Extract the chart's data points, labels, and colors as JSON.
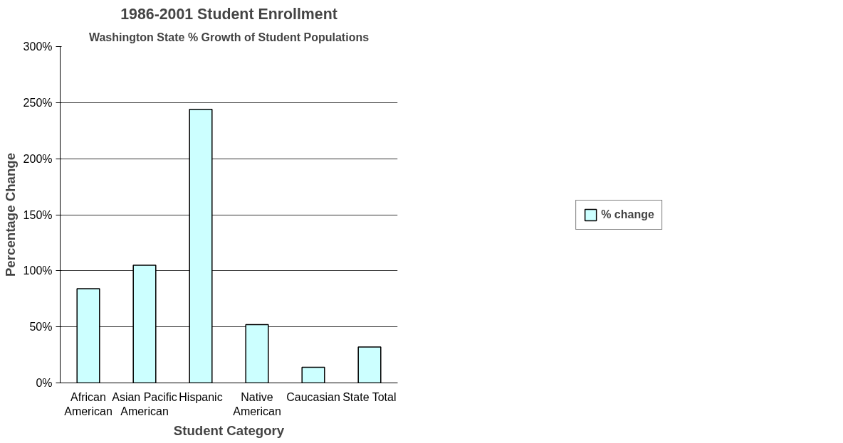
{
  "chart_data": {
    "type": "bar",
    "title": "1986-2001 Student Enrollment",
    "subtitle": "Washington State % Growth of Student Populations",
    "xlabel": "Student Category",
    "ylabel": "Percentage Change",
    "categories": [
      "African\nAmerican",
      "Asian Pacific\nAmerican",
      "Hispanic",
      "Native\nAmerican",
      "Caucasian",
      "State Total"
    ],
    "series": [
      {
        "name": "% change",
        "color": "#ccffff",
        "values": [
          84,
          105,
          244,
          52,
          14,
          32
        ]
      }
    ],
    "ylim": [
      0,
      300
    ],
    "yticks": [
      {
        "value": 0,
        "label": "0%"
      },
      {
        "value": 50,
        "label": "50%"
      },
      {
        "value": 100,
        "label": "100%"
      },
      {
        "value": 150,
        "label": "150%"
      },
      {
        "value": 200,
        "label": "200%"
      },
      {
        "value": 250,
        "label": "250%"
      },
      {
        "value": 300,
        "label": "300%"
      }
    ],
    "grid": "y",
    "legend": "right"
  }
}
